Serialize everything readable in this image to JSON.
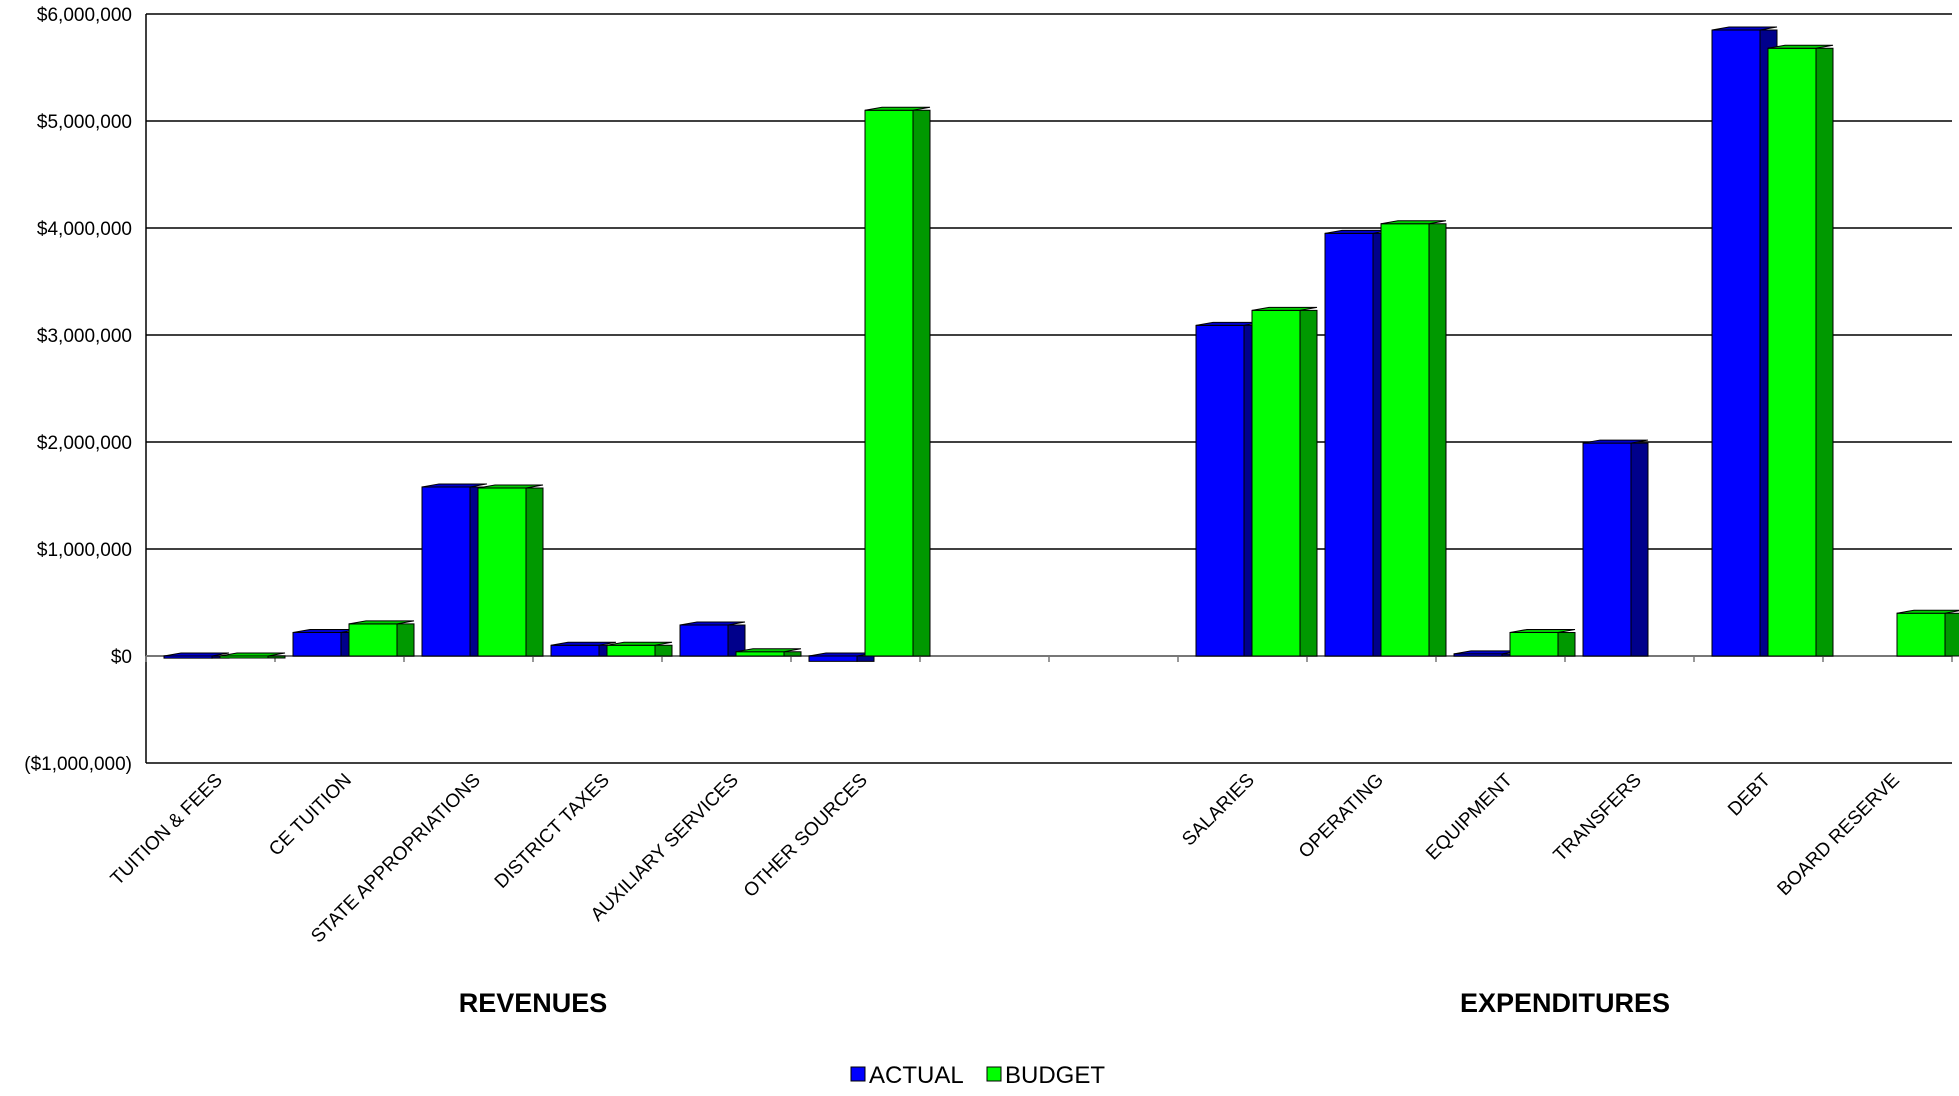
{
  "chart_data": {
    "type": "bar",
    "categories": [
      "TUITION & FEES",
      "CE TUITION",
      "STATE APPROPRIATIONS",
      "DISTRICT TAXES",
      "AUXILIARY SERVICES",
      "OTHER SOURCES",
      "",
      "",
      "SALARIES",
      "OPERATING",
      "EQUIPMENT",
      "TRANSFERS",
      "DEBT",
      "BOARD RESERVE"
    ],
    "series": [
      {
        "name": "ACTUAL",
        "color": "#0000ff",
        "side_color": "#00008b",
        "top_color": "#0000cc",
        "values": [
          -20000,
          220000,
          1580000,
          100000,
          290000,
          -50000,
          null,
          null,
          3090000,
          3950000,
          20000,
          1990000,
          5850000,
          null
        ]
      },
      {
        "name": "BUDGET",
        "color": "#00ff00",
        "side_color": "#009900",
        "top_color": "#00cc00",
        "values": [
          -10000,
          300000,
          1570000,
          100000,
          40000,
          5100000,
          null,
          null,
          3230000,
          4040000,
          220000,
          null,
          5680000,
          400000
        ]
      }
    ],
    "group_labels": [
      {
        "label": "REVENUES",
        "from": 0,
        "to": 5
      },
      {
        "label": "EXPENDITURES",
        "from": 8,
        "to": 13
      }
    ],
    "ylim": [
      -1000000,
      6000000
    ],
    "yticks": [
      -1000000,
      0,
      1000000,
      2000000,
      3000000,
      4000000,
      5000000,
      6000000
    ],
    "ytick_labels": [
      "($1,000,000)",
      "$0",
      "$1,000,000",
      "$2,000,000",
      "$3,000,000",
      "$4,000,000",
      "$5,000,000",
      "$6,000,000"
    ],
    "grid": true,
    "legend_position": "bottom-center"
  }
}
